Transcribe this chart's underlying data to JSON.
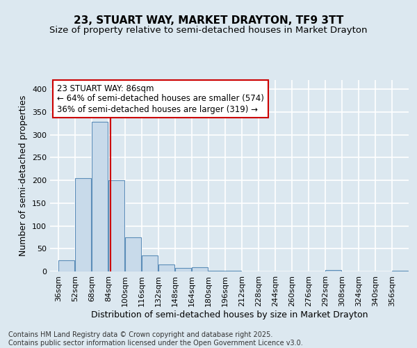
{
  "title": "23, STUART WAY, MARKET DRAYTON, TF9 3TT",
  "subtitle": "Size of property relative to semi-detached houses in Market Drayton",
  "xlabel": "Distribution of semi-detached houses by size in Market Drayton",
  "ylabel": "Number of semi-detached properties",
  "bar_heights": [
    25,
    205,
    328,
    200,
    75,
    35,
    15,
    8,
    9,
    2,
    1,
    0,
    0,
    0,
    0,
    0,
    3,
    0,
    0,
    0,
    2
  ],
  "bin_starts": [
    36,
    52,
    68,
    84,
    100,
    116,
    132,
    148,
    164,
    180,
    196,
    212,
    228,
    244,
    260,
    276,
    292,
    308,
    324,
    340,
    356
  ],
  "bin_width": 16,
  "bar_color": "#c8daea",
  "bar_edge_color": "#5b8db8",
  "property_size": 86,
  "vline_color": "#cc0000",
  "annotation_line1": "23 STUART WAY: 86sqm",
  "annotation_line2": "← 64% of semi-detached houses are smaller (574)",
  "annotation_line3": "36% of semi-detached houses are larger (319) →",
  "annotation_box_color": "#ffffff",
  "annotation_box_edge": "#cc0000",
  "ylim": [
    0,
    420
  ],
  "xlim": [
    28,
    372
  ],
  "title_fontsize": 11,
  "subtitle_fontsize": 9.5,
  "label_fontsize": 9,
  "tick_fontsize": 8,
  "annotation_fontsize": 8.5,
  "footer_text": "Contains HM Land Registry data © Crown copyright and database right 2025.\nContains public sector information licensed under the Open Government Licence v3.0.",
  "footer_fontsize": 7,
  "figure_bg_color": "#dce8f0",
  "axes_bg_color": "#dce8f0",
  "grid_color": "#ffffff",
  "yticks": [
    0,
    50,
    100,
    150,
    200,
    250,
    300,
    350,
    400
  ]
}
